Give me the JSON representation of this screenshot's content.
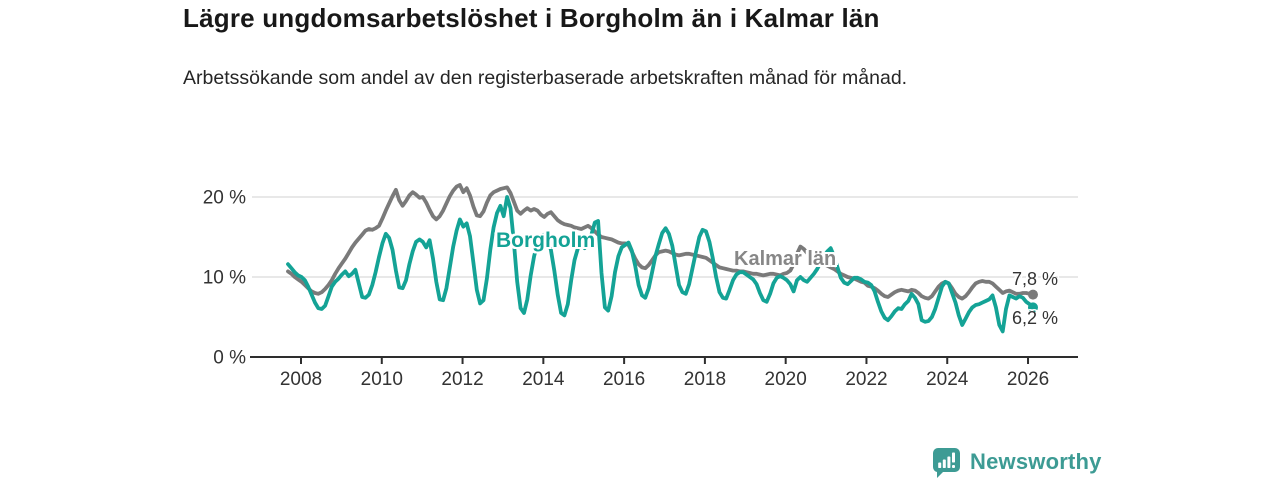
{
  "header": {
    "title": "Lägre ungdomsarbetslöshet i Borgholm än i Kalmar län",
    "subtitle": "Arbetssökande som andel av den registerbaserade arbetskraften månad för månad."
  },
  "footer": {
    "brand": "Newsworthy",
    "logo_icon": "bar-chart-speech-bubble-icon",
    "brand_color": "#3D9B94"
  },
  "chart_data": {
    "type": "line",
    "unit": "%",
    "frequency": "monthly",
    "x_start": "2007-09",
    "x_end": "2026-02",
    "grid": "horizontal",
    "ylim": [
      0,
      22
    ],
    "y_ticks": [
      {
        "value": 0,
        "label": "0 %"
      },
      {
        "value": 10,
        "label": "10 %"
      },
      {
        "value": 20,
        "label": "20 %"
      }
    ],
    "x_tick_years": [
      2008,
      2010,
      2012,
      2014,
      2016,
      2018,
      2020,
      2022,
      2024,
      2026
    ],
    "colors": {
      "borgholm": "#14A396",
      "kalmar": "#7A7A7A",
      "kalmar_label": "#878787",
      "grid": "#d9d9d9",
      "axis": "#2e2e2e",
      "tick_text": "#333333"
    },
    "series": [
      {
        "name": "Borgholm",
        "color": "#14A396",
        "end_value": 6.2,
        "end_label": "6,2 %",
        "values": [
          11.6,
          11.1,
          10.6,
          10.2,
          10.0,
          9.6,
          8.8,
          7.8,
          6.8,
          6.1,
          6.0,
          6.4,
          7.6,
          8.8,
          9.4,
          9.8,
          10.3,
          10.7,
          10.1,
          10.4,
          10.9,
          9.2,
          7.5,
          7.4,
          7.8,
          9.0,
          10.6,
          12.5,
          14.2,
          15.4,
          14.9,
          13.4,
          10.8,
          8.7,
          8.6,
          9.6,
          11.6,
          13.2,
          14.4,
          14.7,
          14.4,
          13.7,
          14.6,
          12.3,
          9.4,
          7.2,
          7.1,
          8.6,
          11.2,
          13.8,
          15.8,
          17.2,
          16.3,
          16.7,
          15.1,
          11.8,
          8.4,
          6.7,
          7.1,
          9.8,
          13.4,
          16.2,
          18.0,
          18.9,
          17.6,
          20.0,
          18.6,
          14.3,
          9.4,
          6.1,
          5.5,
          7.2,
          10.2,
          12.6,
          14.2,
          15.1,
          15.3,
          14.6,
          13.4,
          10.8,
          7.8,
          5.5,
          5.2,
          6.6,
          9.6,
          12.1,
          13.6,
          14.6,
          13.6,
          14.4,
          15.3,
          16.8,
          17.0,
          10.5,
          6.2,
          5.8,
          7.6,
          10.6,
          12.6,
          13.7,
          14.0,
          14.3,
          13.3,
          11.4,
          9.0,
          7.7,
          7.4,
          8.6,
          10.6,
          12.6,
          14.1,
          15.5,
          16.1,
          15.4,
          13.9,
          11.4,
          9.0,
          8.1,
          7.9,
          9.1,
          11.1,
          13.1,
          15.0,
          15.9,
          15.7,
          14.4,
          12.4,
          10.0,
          8.1,
          7.4,
          7.3,
          8.4,
          9.6,
          10.3,
          10.6,
          10.6,
          10.3,
          10.0,
          9.7,
          9.1,
          8.0,
          7.1,
          6.9,
          7.9,
          9.2,
          9.9,
          10.1,
          9.9,
          9.6,
          9.1,
          8.2,
          9.6,
          10.0,
          9.6,
          9.4,
          9.9,
          10.4,
          11.0,
          11.8,
          12.6,
          13.2,
          13.6,
          12.6,
          11.2,
          9.9,
          9.3,
          9.1,
          9.5,
          9.9,
          9.9,
          9.7,
          9.4,
          9.3,
          9.0,
          8.2,
          6.9,
          5.7,
          4.9,
          4.6,
          5.1,
          5.7,
          6.1,
          6.0,
          6.6,
          7.0,
          7.9,
          7.4,
          6.6,
          4.6,
          4.4,
          4.5,
          5.0,
          6.0,
          7.4,
          8.8,
          9.4,
          9.2,
          8.0,
          6.8,
          5.2,
          4.0,
          4.8,
          5.6,
          6.2,
          6.5,
          6.6,
          6.8,
          7.0,
          7.2,
          7.7,
          6.2,
          4.0,
          3.2,
          6.0,
          7.7,
          7.5,
          7.3,
          7.6,
          7.4,
          6.9,
          6.6,
          6.2
        ]
      },
      {
        "name": "Kalmar län",
        "color": "#7A7A7A",
        "end_value": 7.8,
        "end_label": "7,8 %",
        "values": [
          10.7,
          10.4,
          10.0,
          9.7,
          9.4,
          9.0,
          8.6,
          8.2,
          8.0,
          7.9,
          8.1,
          8.5,
          9.0,
          9.6,
          10.4,
          11.1,
          11.7,
          12.3,
          13.0,
          13.7,
          14.3,
          14.8,
          15.3,
          15.8,
          16.0,
          15.9,
          16.1,
          16.4,
          17.3,
          18.3,
          19.2,
          20.1,
          20.9,
          19.6,
          18.9,
          19.5,
          20.2,
          20.6,
          20.3,
          19.9,
          20.0,
          19.3,
          18.4,
          17.6,
          17.2,
          17.6,
          18.3,
          19.2,
          20.1,
          20.8,
          21.3,
          21.5,
          20.6,
          21.1,
          20.2,
          18.8,
          17.7,
          17.6,
          18.2,
          19.3,
          20.2,
          20.6,
          20.8,
          21.0,
          21.1,
          21.2,
          20.5,
          19.4,
          18.3,
          17.9,
          18.3,
          18.6,
          18.3,
          18.5,
          18.3,
          17.8,
          17.5,
          17.9,
          18.1,
          17.6,
          17.1,
          16.8,
          16.6,
          16.5,
          16.4,
          16.2,
          16.1,
          16.0,
          16.2,
          16.4,
          16.1,
          15.7,
          15.3,
          15.0,
          14.9,
          14.8,
          14.7,
          14.5,
          14.3,
          14.2,
          14.2,
          14.0,
          13.2,
          12.3,
          11.6,
          11.2,
          11.1,
          11.5,
          12.1,
          12.7,
          13.1,
          13.2,
          13.3,
          13.2,
          13.0,
          12.8,
          12.7,
          12.8,
          12.9,
          12.9,
          12.8,
          12.7,
          12.6,
          12.5,
          12.4,
          12.1,
          11.8,
          11.5,
          11.2,
          11.1,
          11.0,
          10.9,
          10.8,
          10.8,
          10.7,
          10.7,
          10.6,
          10.5,
          10.4,
          10.4,
          10.3,
          10.2,
          10.3,
          10.4,
          10.4,
          10.3,
          10.2,
          10.4,
          10.5,
          10.8,
          11.6,
          12.9,
          13.8,
          13.5,
          13.0,
          12.7,
          12.4,
          12.1,
          11.8,
          11.6,
          11.4,
          11.2,
          11.0,
          10.7,
          10.4,
          10.2,
          10.0,
          9.9,
          9.8,
          9.6,
          9.4,
          9.3,
          8.9,
          8.8,
          8.6,
          8.3,
          7.9,
          7.6,
          7.5,
          7.8,
          8.1,
          8.3,
          8.4,
          8.3,
          8.2,
          8.4,
          8.3,
          8.0,
          7.6,
          7.4,
          7.3,
          7.6,
          8.2,
          8.8,
          9.2,
          9.4,
          9.2,
          8.6,
          7.9,
          7.5,
          7.3,
          7.6,
          8.1,
          8.7,
          9.2,
          9.4,
          9.5,
          9.4,
          9.4,
          9.2,
          8.8,
          8.4,
          8.0,
          8.2,
          8.3,
          8.1,
          7.9,
          7.9,
          8.0,
          8.0,
          7.9,
          7.8
        ]
      }
    ]
  }
}
